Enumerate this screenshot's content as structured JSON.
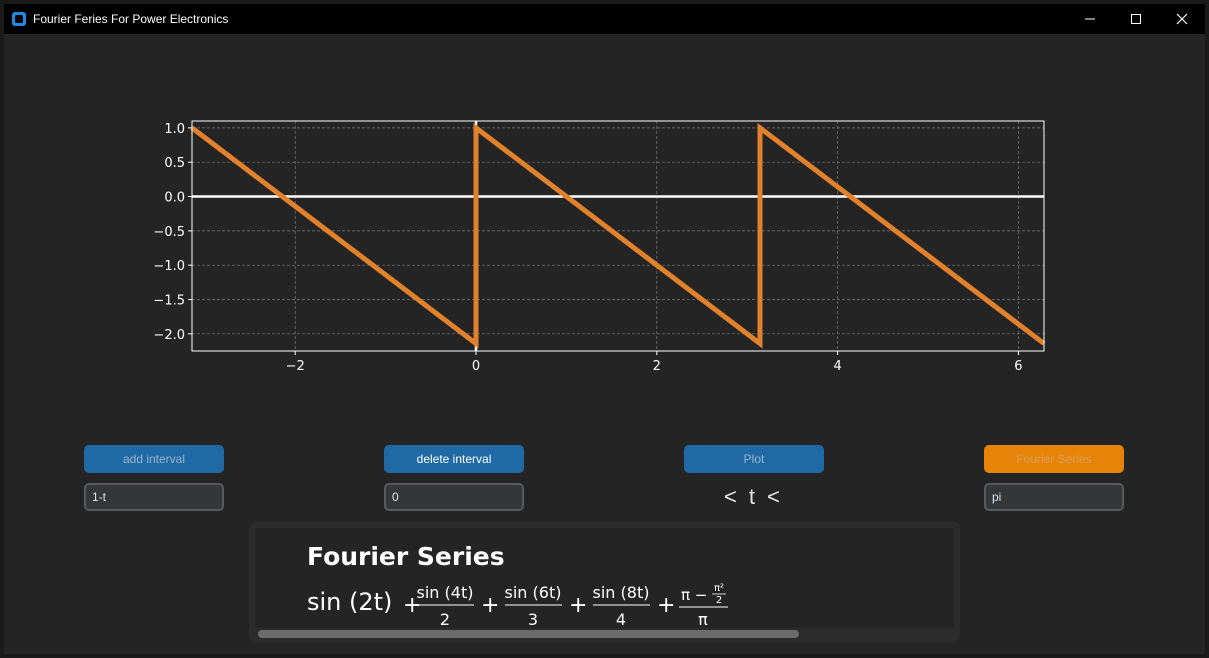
{
  "window": {
    "title": "Fourier Feries For Power Electronics",
    "controls": [
      "minimize-icon",
      "maximize-icon",
      "close-icon"
    ]
  },
  "colors": {
    "background": "#242424",
    "titlebar": "#000000",
    "accent_blue": "#1f6aa5",
    "accent_orange": "#e6840a",
    "plot_line": "#e1812c"
  },
  "buttons": {
    "add_interval": "add interval",
    "delete_interval": "delete interval",
    "plot": "Plot",
    "fourier_series": "Fourier Series"
  },
  "inputs": {
    "function_value": "1-t",
    "lower_bound_value": "0",
    "upper_bound_value": "pi"
  },
  "inequality": {
    "left": "<",
    "variable": "t",
    "right": "<"
  },
  "result": {
    "title": "Fourier Series",
    "terms": [
      {
        "kind": "inline",
        "text": "sin (2t)"
      },
      {
        "kind": "fraction",
        "num": "sin (4t)",
        "den": "2"
      },
      {
        "kind": "fraction",
        "num": "sin (6t)",
        "den": "3"
      },
      {
        "kind": "fraction",
        "num": "sin (8t)",
        "den": "4"
      },
      {
        "kind": "nested",
        "num_prefix": "π −",
        "inner_num": "π²",
        "inner_den": "2",
        "den": "π"
      }
    ],
    "operator": "+"
  },
  "chart_data": {
    "type": "line",
    "title": "",
    "xlabel": "",
    "ylabel": "",
    "xlim": [
      -3.14159,
      6.28319
    ],
    "ylim": [
      -2.25,
      1.1
    ],
    "xticks": [
      -2,
      0,
      2,
      4,
      6
    ],
    "xtick_labels": [
      "−2",
      "0",
      "2",
      "4",
      "6"
    ],
    "yticks": [
      1.0,
      0.5,
      0.0,
      -0.5,
      -1.0,
      -1.5,
      -2.0
    ],
    "ytick_labels": [
      "1.0",
      "0.5",
      "0.0",
      "−0.5",
      "−1.0",
      "−1.5",
      "−2.0"
    ],
    "grid": true,
    "series": [
      {
        "color": "#e1812c",
        "x": [
          -3.14159,
          0,
          0,
          3.14159,
          3.14159,
          6.28319
        ],
        "y": [
          1.0,
          -2.14159,
          1.0,
          -2.14159,
          1.0,
          -2.14159
        ]
      }
    ],
    "zero_lines": {
      "x": 0,
      "y": 0
    }
  }
}
